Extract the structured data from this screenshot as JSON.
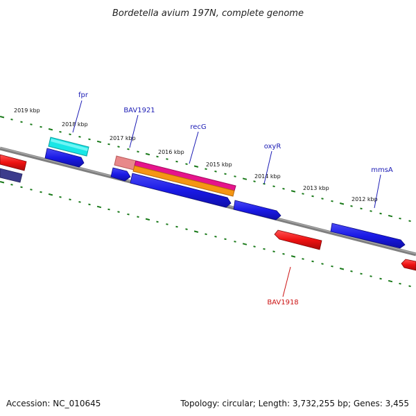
{
  "title": "Bordetella avium 197N, complete genome",
  "footer": {
    "accession": "Accession: NC_010645",
    "summary": "Topology: circular; Length: 3,732,255 bp; Genes: 3,455"
  },
  "colors": {
    "background": "#ffffff",
    "backbone": "#808080",
    "tick": "#1a7a1a",
    "forward_gene": "#1a1ae6",
    "reverse_gene": "#ee1111",
    "forward_label": "#1a1ab4",
    "reverse_label": "#cc1111"
  },
  "kbp_labels": [
    "2019 kbp",
    "2018 kbp",
    "2017 kbp",
    "2016 kbp",
    "2015 kbp",
    "2014 kbp",
    "2013 kbp",
    "2012 kbp"
  ],
  "gene_labels": [
    {
      "text": "fpr",
      "strand": "forward"
    },
    {
      "text": "BAV1921",
      "strand": "forward"
    },
    {
      "text": "recG",
      "strand": "forward"
    },
    {
      "text": "oxyR",
      "strand": "forward"
    },
    {
      "text": "mmsA",
      "strand": "forward"
    },
    {
      "text": "BAV1918",
      "strand": "reverse"
    }
  ],
  "features": [
    {
      "type": "gene",
      "strand": "forward",
      "color": "#1a1ae6"
    },
    {
      "type": "gene",
      "strand": "forward",
      "color": "#1a1ae6"
    },
    {
      "type": "gene",
      "strand": "forward",
      "color": "#1a1ae6"
    },
    {
      "type": "gene",
      "strand": "forward",
      "color": "#1a1ae6"
    },
    {
      "type": "gene",
      "strand": "forward",
      "color": "#1a1ae6"
    },
    {
      "type": "gene",
      "strand": "reverse",
      "color": "#ee1111"
    },
    {
      "type": "gene",
      "strand": "reverse",
      "color": "#ee1111"
    },
    {
      "type": "gene",
      "strand": "reverse",
      "color": "#ee1111"
    },
    {
      "type": "gene",
      "strand": "reverse",
      "color": "#3c3c8c"
    },
    {
      "type": "cds",
      "strand": "forward",
      "color": "#19e6e6"
    },
    {
      "type": "cds",
      "strand": "forward",
      "color": "#e8888a"
    },
    {
      "type": "cds",
      "strand": "forward",
      "color": "#e6148c"
    },
    {
      "type": "cds",
      "strand": "forward",
      "color": "#f59614"
    }
  ]
}
